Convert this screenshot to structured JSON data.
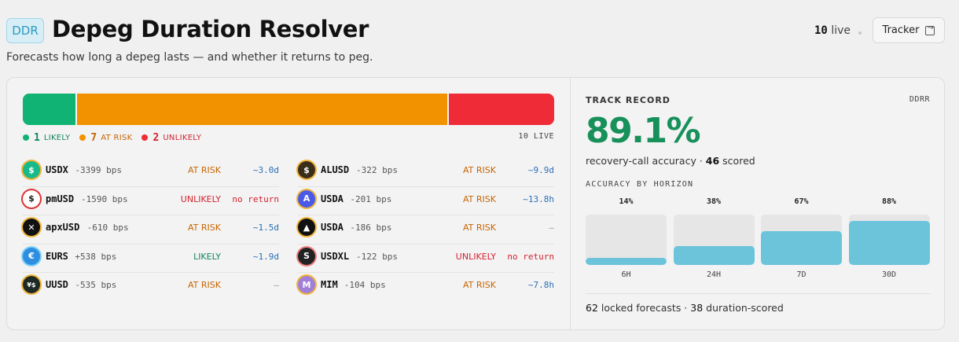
{
  "header": {
    "badge": "DDR",
    "title": "Depeg Duration Resolver",
    "subtitle": "Forecasts how long a depeg lasts — and whether it returns to peg.",
    "live_count": "10",
    "live_label": "live",
    "tracker_label": "Tracker"
  },
  "colors": {
    "likely": "#10b374",
    "at_risk": "#f29200",
    "unlikely": "#ef2b37",
    "accent": "#17905a",
    "horizon_fill": "#6cc4db",
    "duration": "#2a6fb3"
  },
  "summary": {
    "segments": [
      {
        "key": "likely",
        "count": 1
      },
      {
        "key": "at_risk",
        "count": 7
      },
      {
        "key": "unlikely",
        "count": 2
      }
    ],
    "legend": [
      {
        "count": "1",
        "label": "LIKELY",
        "color": "#10b374",
        "text_color": "#13865a"
      },
      {
        "count": "7",
        "label": "AT RISK",
        "color": "#f29200",
        "text_color": "#c76500"
      },
      {
        "count": "2",
        "label": "UNLIKELY",
        "color": "#ef2b37",
        "text_color": "#d3222d"
      }
    ],
    "live_text": "10 LIVE"
  },
  "rows_left": [
    {
      "symbol": "USDX",
      "bps": "-3399 bps",
      "status": "AT RISK",
      "duration": "~3.0d",
      "icon": "usdx-dollar-icon"
    },
    {
      "symbol": "pmUSD",
      "bps": "-1590 bps",
      "status": "UNLIKELY",
      "duration": "no return",
      "icon": "pmusd-dollar-icon"
    },
    {
      "symbol": "apxUSD",
      "bps": "-610 bps",
      "status": "AT RISK",
      "duration": "~1.5d",
      "icon": "apxusd-x-icon"
    },
    {
      "symbol": "EURS",
      "bps": "+538 bps",
      "status": "LIKELY",
      "duration": "~1.9d",
      "icon": "eurs-euro-icon"
    },
    {
      "symbol": "UUSD",
      "bps": "-535 bps",
      "status": "AT RISK",
      "duration": "—",
      "icon": "uusd-icon"
    }
  ],
  "rows_right": [
    {
      "symbol": "ALUSD",
      "bps": "-322 bps",
      "status": "AT RISK",
      "duration": "~9.9d",
      "icon": "alusd-dollar-icon"
    },
    {
      "symbol": "USDA",
      "bps": "-201 bps",
      "status": "AT RISK",
      "duration": "~13.8h",
      "icon": "usda-a-icon"
    },
    {
      "symbol": "USDA",
      "bps": "-186 bps",
      "status": "AT RISK",
      "duration": "—",
      "icon": "usda-triangle-icon"
    },
    {
      "symbol": "USDXL",
      "bps": "-122 bps",
      "status": "UNLIKELY",
      "duration": "no return",
      "icon": "usdxl-icon"
    },
    {
      "symbol": "MIM",
      "bps": "-104 bps",
      "status": "AT RISK",
      "duration": "~7.8h",
      "icon": "mim-icon"
    }
  ],
  "track_record": {
    "title": "TRACK RECORD",
    "code": "DDRR",
    "accuracy": "89.1%",
    "accuracy_label": "recovery-call accuracy ·",
    "scored_count": "46",
    "scored_label": "scored",
    "horizon_title": "ACCURACY BY HORIZON",
    "horizons": [
      {
        "label": "6H",
        "pct_text": "14%",
        "fraction": 0.14
      },
      {
        "label": "24H",
        "pct_text": "38%",
        "fraction": 0.38
      },
      {
        "label": "7D",
        "pct_text": "67%",
        "fraction": 0.67
      },
      {
        "label": "30D",
        "pct_text": "88%",
        "fraction": 0.88
      }
    ],
    "locked_count": "62",
    "locked_label": "locked forecasts ·",
    "duration_count": "38",
    "duration_label": "duration-scored"
  }
}
